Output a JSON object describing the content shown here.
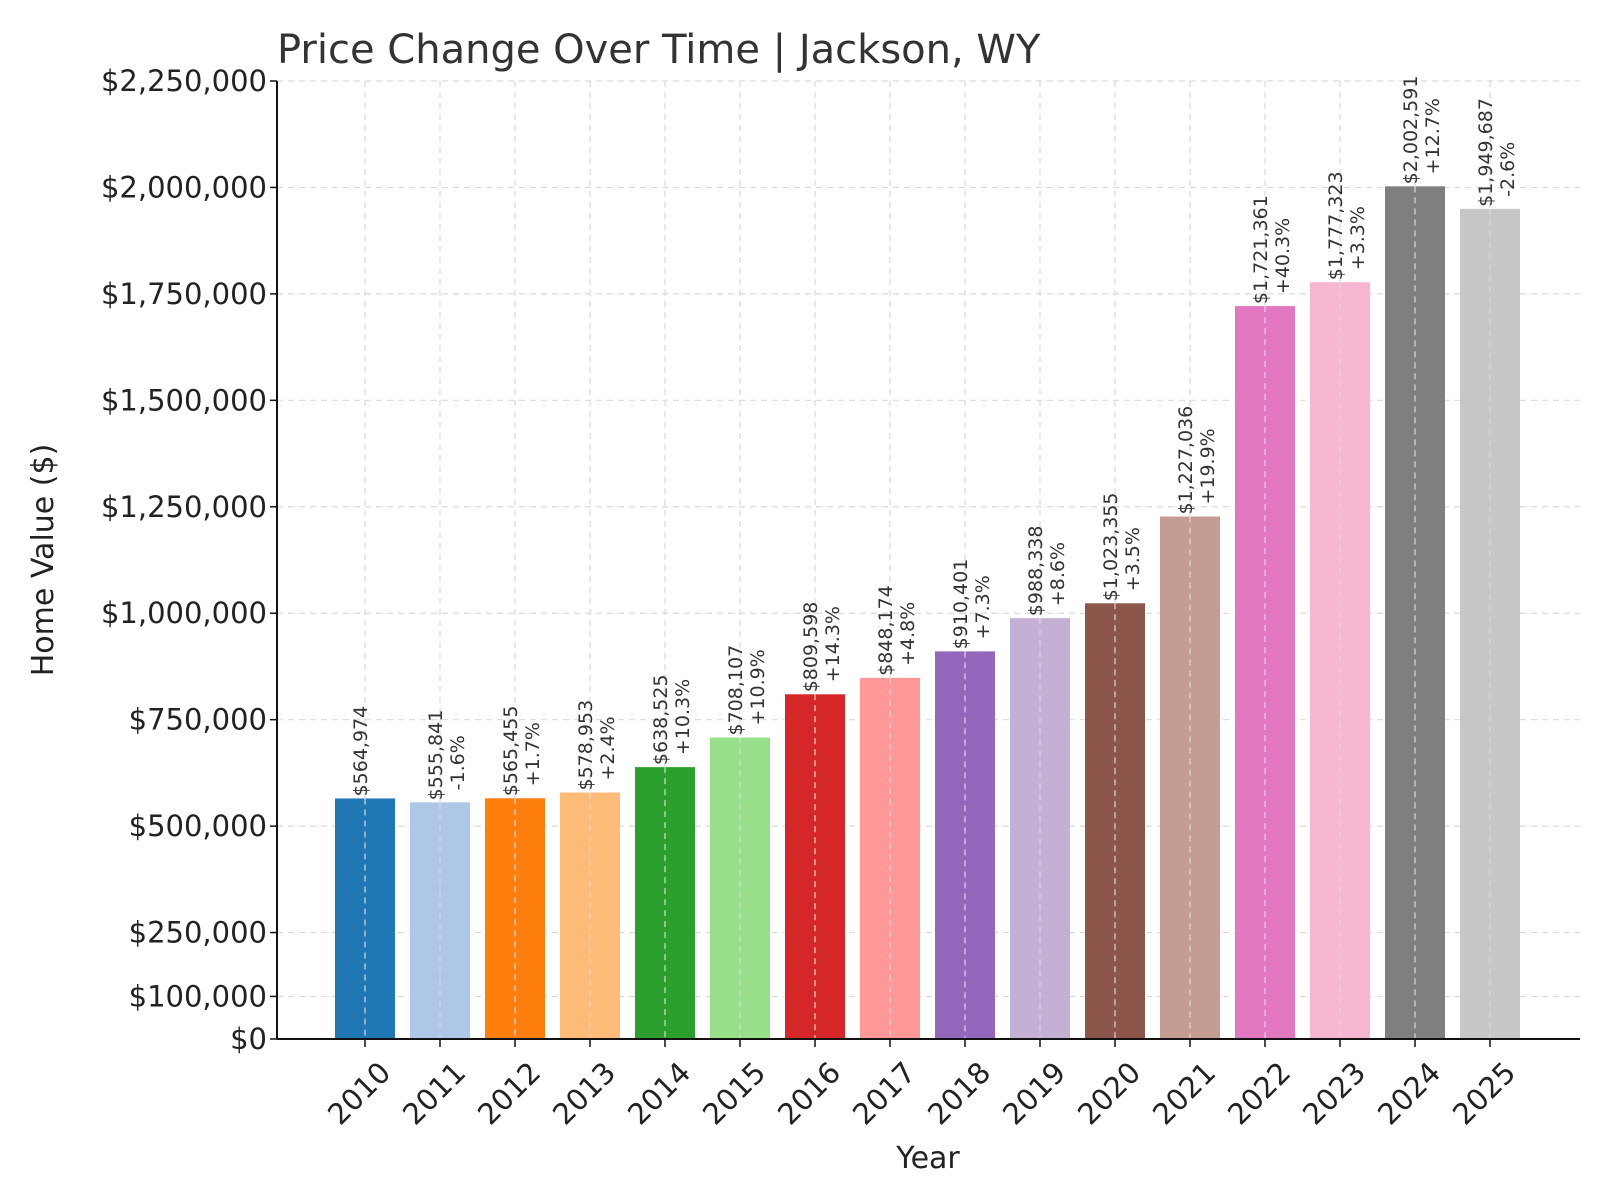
{
  "chart_data": {
    "type": "bar",
    "title": "Price Change Over Time | Jackson, WY",
    "xlabel": "Year",
    "ylabel": "Home Value ($)",
    "ylim": [
      0,
      2250000
    ],
    "grid": true,
    "yticks": [
      0,
      100000,
      250000,
      500000,
      750000,
      1000000,
      1250000,
      1500000,
      1750000,
      2000000,
      2250000
    ],
    "ytick_labels": [
      "$0",
      "$100,000",
      "$250,000",
      "$500,000",
      "$750,000",
      "$1,000,000",
      "$1,250,000",
      "$1,500,000",
      "$1,750,000",
      "$2,000,000",
      "$2,250,000"
    ],
    "categories": [
      "2010",
      "2011",
      "2012",
      "2013",
      "2014",
      "2015",
      "2016",
      "2017",
      "2018",
      "2019",
      "2020",
      "2021",
      "2022",
      "2023",
      "2024",
      "2025"
    ],
    "values": [
      564974,
      555841,
      565455,
      578953,
      638525,
      708107,
      809598,
      848174,
      910401,
      988338,
      1023355,
      1227036,
      1721361,
      1777323,
      2002591,
      1949687
    ],
    "value_labels": [
      "$564,974",
      "$555,841",
      "$565,455",
      "$578,953",
      "$638,525",
      "$708,107",
      "$809,598",
      "$848,174",
      "$910,401",
      "$988,338",
      "$1,023,355",
      "$1,227,036",
      "$1,721,361",
      "$1,777,323",
      "$2,002,591",
      "$1,949,687"
    ],
    "change_labels": [
      "",
      "-1.6%",
      "+1.7%",
      "+2.4%",
      "+10.3%",
      "+10.9%",
      "+14.3%",
      "+4.8%",
      "+7.3%",
      "+8.6%",
      "+3.5%",
      "+19.9%",
      "+40.3%",
      "+3.3%",
      "+12.7%",
      "-2.6%"
    ],
    "colors": [
      "#1f77b4",
      "#aec7e8",
      "#ff7f0e",
      "#ffbb78",
      "#2ca02c",
      "#98df8a",
      "#d62728",
      "#ff9896",
      "#9467bd",
      "#c5b0d5",
      "#8c564b",
      "#c49c94",
      "#e377c2",
      "#f7b6d2",
      "#7f7f7f",
      "#c7c7c7"
    ]
  }
}
